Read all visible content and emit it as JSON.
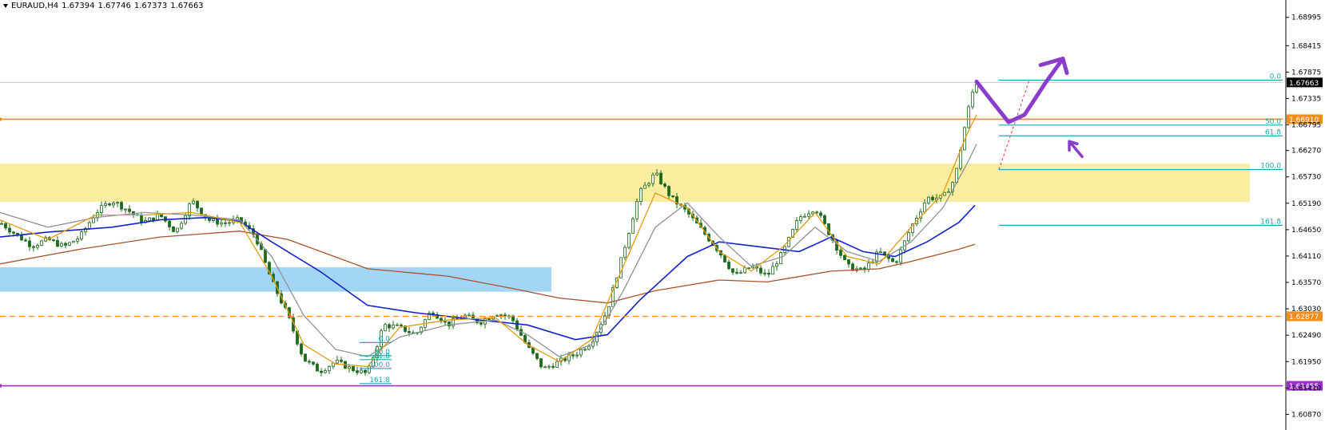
{
  "header": {
    "symbol": "EURAUD,H4",
    "open": "1.67394",
    "high": "1.67746",
    "low": "1.67373",
    "close": "1.67663"
  },
  "colors": {
    "zone_yellow": "#fbeda0",
    "zone_blue": "#a3d6f5",
    "orange_line": "#f28c1a",
    "purple_line": "#9b2fd0",
    "fib_line": "#1aa7b3",
    "ma_blue": "#1323c8",
    "ma_brown": "#a6522b",
    "ma_orange": "#e59a10",
    "ma_gray": "#8c939a",
    "candle": "#1c6b1c",
    "drawing": "#8a3ccc"
  },
  "chart_data": {
    "type": "candlestick",
    "symbol": "EURAUD",
    "timeframe": "H4",
    "ylim": [
      1.6055,
      1.6935
    ],
    "y_ticks": [
      "1.68995",
      "1.68415",
      "1.67875",
      "1.67335",
      "1.66795",
      "1.66270",
      "1.65730",
      "1.65190",
      "1.64650",
      "1.64110",
      "1.63570",
      "1.63030",
      "1.62490",
      "1.61950",
      "1.61410",
      "1.60870"
    ],
    "current_price": "1.67663",
    "levels": [
      {
        "name": "resistance-orange",
        "value": 1.6691,
        "label": "1.66910",
        "style": "solid"
      },
      {
        "name": "support-orange-dashed",
        "value": 1.62877,
        "label": "1.62877",
        "style": "dashed"
      },
      {
        "name": "support-purple",
        "value": 1.61455,
        "label": "1.61455",
        "style": "solid"
      }
    ],
    "zones": [
      {
        "name": "supply-zone-yellow",
        "top": 1.66,
        "bottom": 1.6522
      },
      {
        "name": "demand-zone-blue",
        "top": 1.6388,
        "bottom": 1.6338
      }
    ],
    "fibonacci_main": [
      {
        "label": "0.0",
        "value": 1.6771
      },
      {
        "label": "50.0",
        "value": 1.6679
      },
      {
        "label": "61.8",
        "value": 1.6657
      },
      {
        "label": "100.0",
        "value": 1.6588
      },
      {
        "label": "161.8",
        "value": 1.6474
      }
    ],
    "fibonacci_small": [
      {
        "label": "0.0",
        "value": 1.6234
      },
      {
        "label": "50.0",
        "value": 1.6207
      },
      {
        "label": "61.8",
        "value": 1.6199
      },
      {
        "label": "100.0",
        "value": 1.6181
      },
      {
        "label": "161.8",
        "value": 1.615
      }
    ],
    "close_path": [
      [
        0,
        1.648
      ],
      [
        20,
        1.6455
      ],
      [
        40,
        1.6432
      ],
      [
        60,
        1.6445
      ],
      [
        80,
        1.643
      ],
      [
        100,
        1.645
      ],
      [
        120,
        1.65
      ],
      [
        140,
        1.6525
      ],
      [
        160,
        1.6505
      ],
      [
        180,
        1.648
      ],
      [
        200,
        1.6495
      ],
      [
        220,
        1.646
      ],
      [
        240,
        1.6525
      ],
      [
        260,
        1.6485
      ],
      [
        280,
        1.6478
      ],
      [
        300,
        1.6485
      ],
      [
        320,
        1.645
      ],
      [
        340,
        1.636
      ],
      [
        360,
        1.629
      ],
      [
        380,
        1.62
      ],
      [
        400,
        1.6175
      ],
      [
        420,
        1.6195
      ],
      [
        440,
        1.618
      ],
      [
        460,
        1.617
      ],
      [
        480,
        1.627
      ],
      [
        500,
        1.6265
      ],
      [
        520,
        1.625
      ],
      [
        540,
        1.63
      ],
      [
        560,
        1.627
      ],
      [
        580,
        1.629
      ],
      [
        600,
        1.6275
      ],
      [
        620,
        1.6295
      ],
      [
        640,
        1.6285
      ],
      [
        660,
        1.6225
      ],
      [
        680,
        1.618
      ],
      [
        700,
        1.6195
      ],
      [
        720,
        1.621
      ],
      [
        740,
        1.6235
      ],
      [
        760,
        1.63
      ],
      [
        780,
        1.642
      ],
      [
        800,
        1.654
      ],
      [
        820,
        1.658
      ],
      [
        840,
        1.653
      ],
      [
        860,
        1.65
      ],
      [
        880,
        1.646
      ],
      [
        900,
        1.642
      ],
      [
        920,
        1.637
      ],
      [
        940,
        1.639
      ],
      [
        960,
        1.637
      ],
      [
        980,
        1.642
      ],
      [
        1000,
        1.649
      ],
      [
        1020,
        1.651
      ],
      [
        1040,
        1.645
      ],
      [
        1060,
        1.639
      ],
      [
        1080,
        1.638
      ],
      [
        1100,
        1.642
      ],
      [
        1120,
        1.6395
      ],
      [
        1140,
        1.647
      ],
      [
        1160,
        1.653
      ],
      [
        1180,
        1.653
      ],
      [
        1195,
        1.657
      ],
      [
        1210,
        1.67
      ],
      [
        1220,
        1.6766
      ]
    ],
    "moving_averages": [
      {
        "name": "ma-brown",
        "color": "#a6522b",
        "points": [
          [
            0,
            1.6395
          ],
          [
            100,
            1.6425
          ],
          [
            200,
            1.645
          ],
          [
            300,
            1.6462
          ],
          [
            360,
            1.6445
          ],
          [
            460,
            1.6385
          ],
          [
            560,
            1.637
          ],
          [
            640,
            1.6345
          ],
          [
            700,
            1.6325
          ],
          [
            760,
            1.6315
          ],
          [
            820,
            1.634
          ],
          [
            900,
            1.6362
          ],
          [
            960,
            1.6358
          ],
          [
            1040,
            1.638
          ],
          [
            1100,
            1.6385
          ],
          [
            1140,
            1.64
          ],
          [
            1200,
            1.6425
          ],
          [
            1220,
            1.6435
          ]
        ]
      },
      {
        "name": "ma-blue",
        "color": "#1323c8",
        "points": [
          [
            0,
            1.645
          ],
          [
            60,
            1.646
          ],
          [
            140,
            1.647
          ],
          [
            200,
            1.6485
          ],
          [
            260,
            1.649
          ],
          [
            300,
            1.6482
          ],
          [
            340,
            1.644
          ],
          [
            400,
            1.638
          ],
          [
            460,
            1.631
          ],
          [
            520,
            1.6295
          ],
          [
            600,
            1.628
          ],
          [
            660,
            1.627
          ],
          [
            720,
            1.624
          ],
          [
            760,
            1.625
          ],
          [
            800,
            1.632
          ],
          [
            860,
            1.641
          ],
          [
            900,
            1.644
          ],
          [
            950,
            1.643
          ],
          [
            1000,
            1.642
          ],
          [
            1040,
            1.645
          ],
          [
            1080,
            1.642
          ],
          [
            1120,
            1.641
          ],
          [
            1160,
            1.644
          ],
          [
            1200,
            1.648
          ],
          [
            1220,
            1.6515
          ]
        ]
      },
      {
        "name": "ma-gray",
        "color": "#8c939a",
        "points": [
          [
            0,
            1.65
          ],
          [
            60,
            1.647
          ],
          [
            120,
            1.649
          ],
          [
            180,
            1.65
          ],
          [
            240,
            1.6495
          ],
          [
            300,
            1.6485
          ],
          [
            340,
            1.641
          ],
          [
            380,
            1.629
          ],
          [
            420,
            1.622
          ],
          [
            460,
            1.6205
          ],
          [
            500,
            1.6245
          ],
          [
            560,
            1.627
          ],
          [
            620,
            1.628
          ],
          [
            660,
            1.625
          ],
          [
            700,
            1.6205
          ],
          [
            740,
            1.623
          ],
          [
            780,
            1.634
          ],
          [
            820,
            1.647
          ],
          [
            860,
            1.652
          ],
          [
            900,
            1.645
          ],
          [
            940,
            1.639
          ],
          [
            980,
            1.641
          ],
          [
            1020,
            1.647
          ],
          [
            1060,
            1.642
          ],
          [
            1100,
            1.64
          ],
          [
            1140,
            1.644
          ],
          [
            1180,
            1.651
          ],
          [
            1210,
            1.66
          ],
          [
            1222,
            1.664
          ]
        ]
      },
      {
        "name": "ma-orange",
        "color": "#e59a10",
        "points": [
          [
            0,
            1.6485
          ],
          [
            60,
            1.6445
          ],
          [
            120,
            1.6495
          ],
          [
            180,
            1.6495
          ],
          [
            240,
            1.65
          ],
          [
            300,
            1.648
          ],
          [
            340,
            1.637
          ],
          [
            380,
            1.623
          ],
          [
            420,
            1.619
          ],
          [
            460,
            1.6185
          ],
          [
            500,
            1.6265
          ],
          [
            560,
            1.628
          ],
          [
            620,
            1.6285
          ],
          [
            660,
            1.623
          ],
          [
            700,
            1.6195
          ],
          [
            740,
            1.624
          ],
          [
            780,
            1.639
          ],
          [
            820,
            1.654
          ],
          [
            860,
            1.651
          ],
          [
            900,
            1.642
          ],
          [
            940,
            1.638
          ],
          [
            980,
            1.643
          ],
          [
            1020,
            1.65
          ],
          [
            1060,
            1.641
          ],
          [
            1100,
            1.6395
          ],
          [
            1140,
            1.647
          ],
          [
            1180,
            1.654
          ],
          [
            1210,
            1.666
          ],
          [
            1222,
            1.67
          ]
        ]
      }
    ],
    "drawing_arrow": [
      [
        1222,
        1.6768
      ],
      [
        1245,
        1.672
      ],
      [
        1262,
        1.6685
      ],
      [
        1282,
        1.67
      ],
      [
        1308,
        1.6765
      ],
      [
        1330,
        1.6815
      ]
    ]
  }
}
